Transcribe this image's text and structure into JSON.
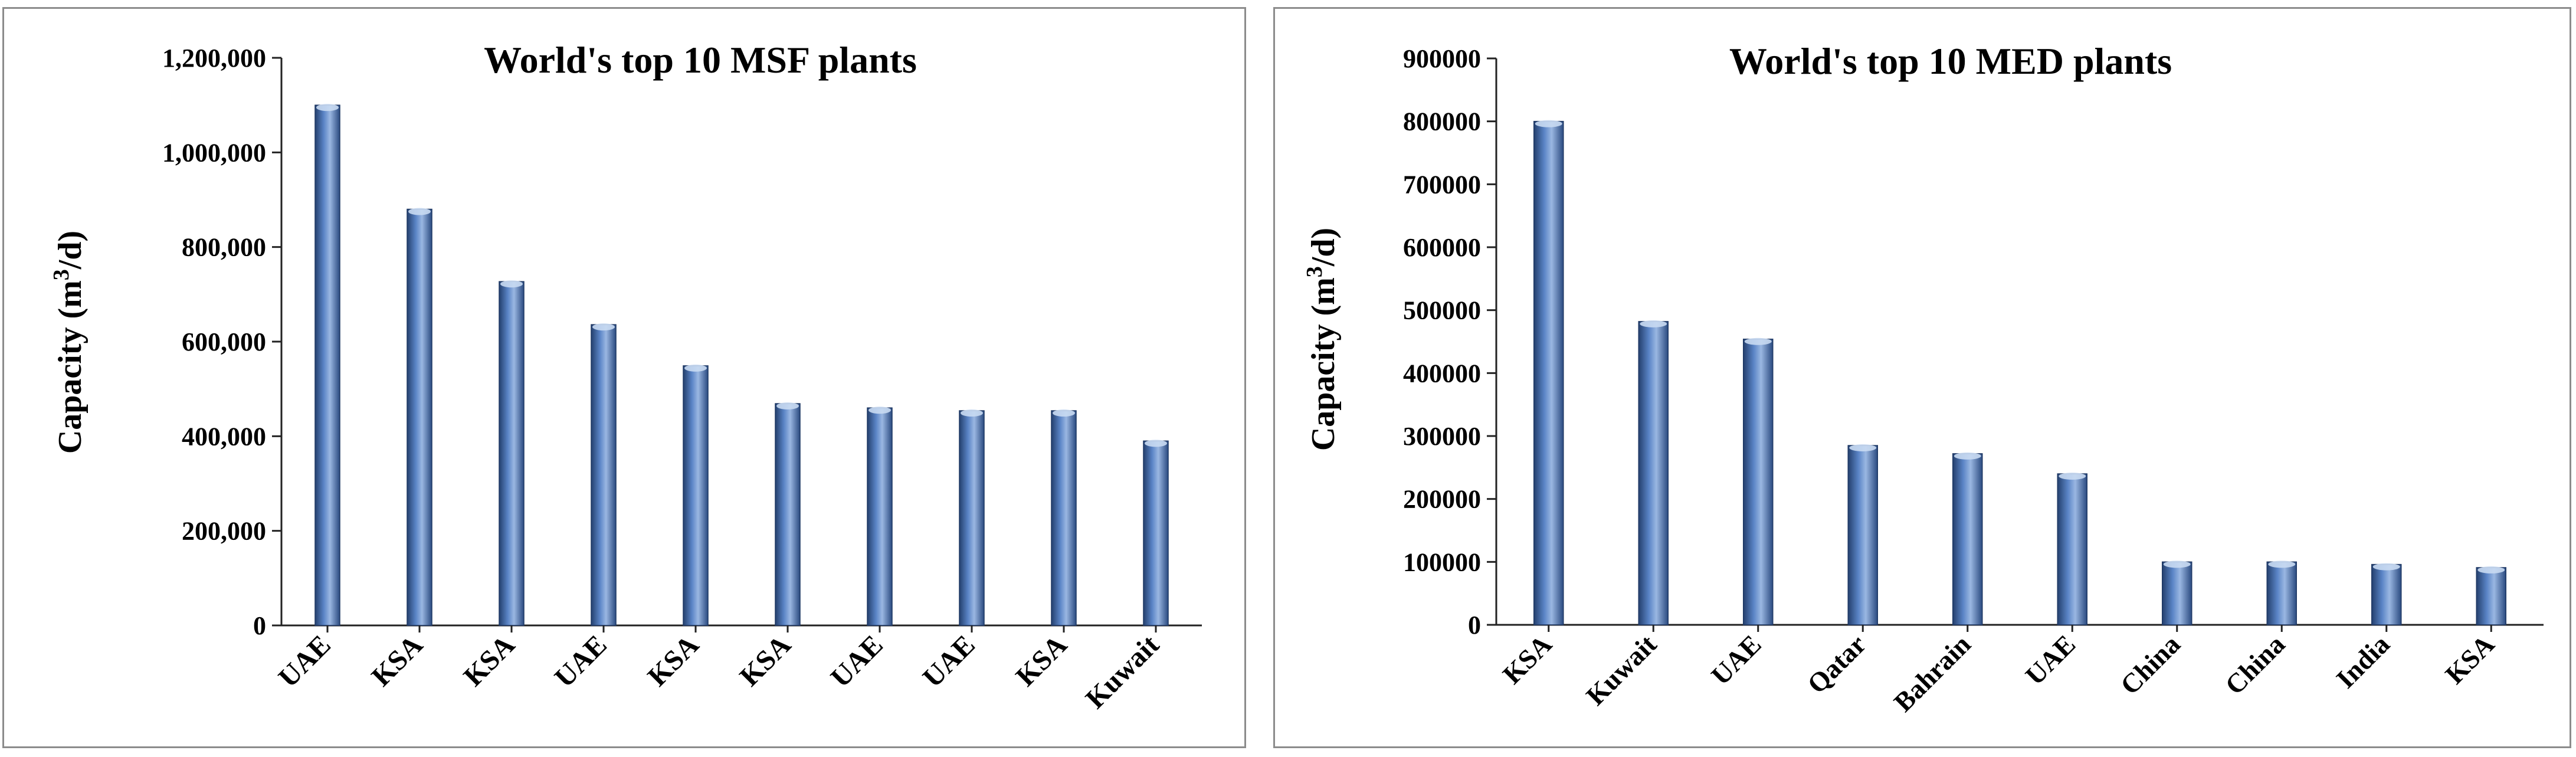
{
  "chart_data": [
    {
      "type": "bar",
      "title": "World's top 10 MSF plants",
      "ylabel": "Capacity (m3/d)",
      "ylabel_parts": {
        "pre": "Capacity (m",
        "sup": "3",
        "post": "/d)"
      },
      "xlabel": "",
      "categories": [
        "UAE",
        "KSA",
        "KSA",
        "UAE",
        "KSA",
        "KSA",
        "UAE",
        "UAE",
        "KSA",
        "Kuwait"
      ],
      "values": [
        1100000,
        880000,
        727000,
        636000,
        549000,
        469000,
        460000,
        454000,
        454000,
        390000
      ],
      "ylim": [
        0,
        1200000
      ],
      "yticks": [
        0,
        200000,
        400000,
        600000,
        800000,
        1000000,
        1200000
      ],
      "ytick_labels": [
        "0",
        "200,000",
        "400,000",
        "600,000",
        "800,000",
        "1,000,000",
        "1,200,000"
      ],
      "grid": false,
      "legend": "none",
      "bar_color": "#4f79bd"
    },
    {
      "type": "bar",
      "title": "World's top 10 MED plants",
      "ylabel": "Capacity (m3/d)",
      "ylabel_parts": {
        "pre": "Capacity (m",
        "sup": "3",
        "post": "/d)"
      },
      "xlabel": "",
      "categories": [
        "KSA",
        "Kuwait",
        "UAE",
        "Qatar",
        "Bahrain",
        "UAE",
        "China",
        "China",
        "India",
        "KSA"
      ],
      "values": [
        800000,
        482000,
        454000,
        285000,
        272000,
        240000,
        100000,
        100000,
        96000,
        91000
      ],
      "ylim": [
        0,
        900000
      ],
      "yticks": [
        0,
        100000,
        200000,
        300000,
        400000,
        500000,
        600000,
        700000,
        800000,
        900000
      ],
      "ytick_labels": [
        "0",
        "100000",
        "200000",
        "300000",
        "400000",
        "500000",
        "600000",
        "700000",
        "800000",
        "900000"
      ],
      "grid": false,
      "legend": "none",
      "bar_color": "#4f79bd"
    }
  ]
}
